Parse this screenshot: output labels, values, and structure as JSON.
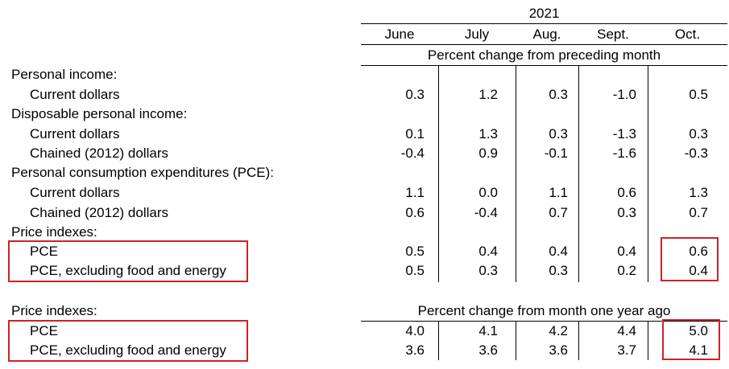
{
  "header": {
    "year": "2021",
    "months": [
      "June",
      "July",
      "Aug.",
      "Sept.",
      "Oct."
    ],
    "band1": "Percent change from preceding month",
    "band2": "Percent change from month one year ago"
  },
  "rows": [
    {
      "label": "Personal income:",
      "indent": false,
      "values": []
    },
    {
      "label": "Current dollars",
      "indent": true,
      "values": [
        "0.3",
        "1.2",
        "0.3",
        "-1.0",
        "0.5"
      ]
    },
    {
      "label": "Disposable personal income:",
      "indent": false,
      "values": []
    },
    {
      "label": "Current dollars",
      "indent": true,
      "values": [
        "0.1",
        "1.3",
        "0.3",
        "-1.3",
        "0.3"
      ]
    },
    {
      "label": "Chained (2012) dollars",
      "indent": true,
      "values": [
        "-0.4",
        "0.9",
        "-0.1",
        "-1.6",
        "-0.3"
      ]
    },
    {
      "label": "Personal consumption expenditures (PCE):",
      "indent": false,
      "values": []
    },
    {
      "label": "Current dollars",
      "indent": true,
      "values": [
        "1.1",
        "0.0",
        "1.1",
        "0.6",
        "1.3"
      ]
    },
    {
      "label": "Chained (2012) dollars",
      "indent": true,
      "values": [
        "0.6",
        "-0.4",
        "0.7",
        "0.3",
        "0.7"
      ]
    },
    {
      "label": "Price indexes:",
      "indent": false,
      "values": []
    },
    {
      "label": "PCE",
      "indent": true,
      "values": [
        "0.5",
        "0.4",
        "0.4",
        "0.4",
        "0.6"
      ]
    },
    {
      "label": "PCE, excluding food and energy",
      "indent": true,
      "values": [
        "0.5",
        "0.3",
        "0.3",
        "0.2",
        "0.4"
      ]
    }
  ],
  "yoy": {
    "section_label": "Price indexes:",
    "rows": [
      {
        "label": "PCE",
        "values": [
          "4.0",
          "4.1",
          "4.2",
          "4.4",
          "5.0"
        ]
      },
      {
        "label": "PCE, excluding food and energy",
        "values": [
          "3.6",
          "3.6",
          "3.6",
          "3.7",
          "4.1"
        ]
      }
    ]
  },
  "colors": {
    "highlight": "#cc2229",
    "rule": "#000000"
  }
}
